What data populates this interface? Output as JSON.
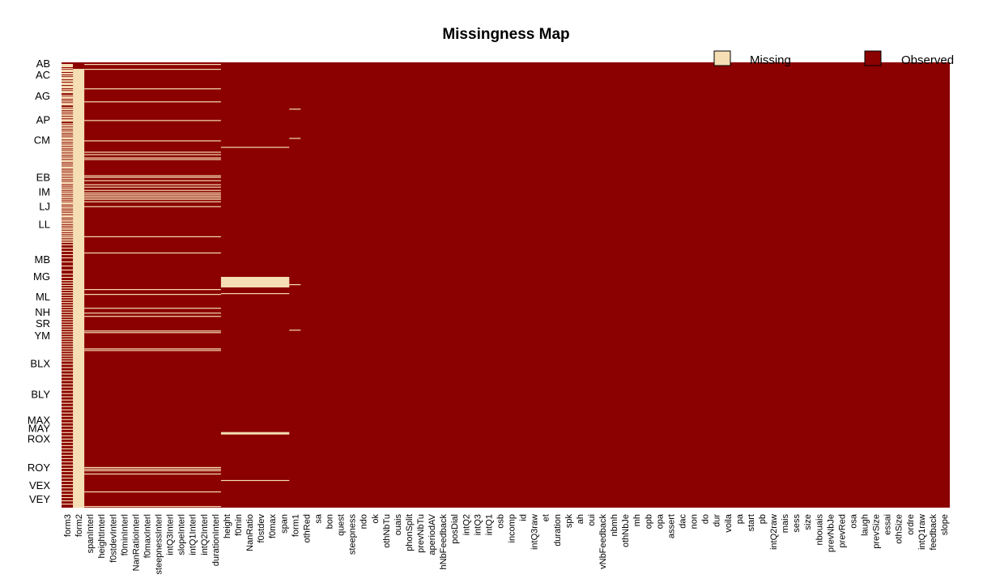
{
  "chart_data": {
    "type": "heatmap",
    "title": "Missingness Map",
    "legend": {
      "placement": "top-right",
      "items": [
        {
          "label": "Missing",
          "color": "#F5DEB3"
        },
        {
          "label": "Observed",
          "color": "#8B0000"
        }
      ]
    },
    "colors": {
      "missing": "#F5DEB3",
      "observed": "#8B0000"
    },
    "y_labels": [
      "AB",
      "AC",
      "AG",
      "AP",
      "CM",
      "EB",
      "IM",
      "LJ",
      "LL",
      "MB",
      "MG",
      "ML",
      "NH",
      "SR",
      "YM",
      "BLX",
      "BLY",
      "MAX",
      "MAY",
      "ROX",
      "ROY",
      "VEX",
      "VEY"
    ],
    "y_label_rows": [
      1,
      15,
      41,
      70,
      95,
      141,
      159,
      177,
      199,
      242,
      263,
      288,
      307,
      321,
      336,
      370,
      408,
      440,
      450,
      463,
      498,
      520,
      537
    ],
    "x_labels": [
      "form3",
      "form2",
      "spanInterl",
      "heightInterl",
      "f0stdevInterl",
      "f0minInterl",
      "NanRatioInterl",
      "f0maxInterl",
      "steepnessInterl",
      "intQ3Interl",
      "slopeInterl",
      "intQ1Interl",
      "intQ2Interl",
      "durationInterl",
      "height",
      "f0min",
      "NanRatio",
      "f0stdev",
      "f0max",
      "span",
      "form1",
      "othRed",
      "sa",
      "bon",
      "quest",
      "steepness",
      "ndo",
      "ok",
      "othNbTu",
      "ouais",
      "phonSplit",
      "prevNbTu",
      "aperiodAV",
      "hNbFeedback",
      "posDial",
      "intQ2",
      "intQ3",
      "intQ1",
      "osb",
      "incomp",
      "id",
      "intQ3raw",
      "et",
      "duration",
      "spk",
      "ah",
      "oui",
      "vNbFeedback",
      "nbmh",
      "othNbJe",
      "mh",
      "opb",
      "opa",
      "assert",
      "dac",
      "non",
      "do",
      "dur",
      "voila",
      "pa",
      "start",
      "pb",
      "intQ2raw",
      "mais",
      "sess",
      "size",
      "nbouais",
      "prevNbJe",
      "prevRed",
      "osa",
      "laugh",
      "prevSize",
      "essai",
      "othSize",
      "ordre",
      "intQ1raw",
      "feedback",
      "slope"
    ],
    "n_rows": 548,
    "missing": [
      {
        "columns": [
          0
        ],
        "rows": [
          2,
          3,
          4,
          5,
          7,
          9,
          10,
          11,
          13,
          14,
          16,
          18,
          19,
          20,
          22,
          23,
          25,
          26,
          27,
          29,
          30,
          31,
          33,
          35,
          36,
          37,
          40,
          42,
          43,
          44,
          46,
          48,
          50,
          51,
          52,
          55,
          57,
          58,
          60,
          62,
          64,
          65,
          67,
          68,
          70,
          71,
          72,
          75,
          77,
          78,
          80,
          81,
          83,
          85,
          86,
          88,
          90,
          92,
          93,
          94,
          96,
          97,
          99,
          101,
          102,
          104,
          105,
          107,
          109,
          110,
          112,
          113,
          115,
          117,
          118,
          120,
          121,
          122,
          124,
          126,
          128,
          129,
          130,
          132,
          134,
          136,
          137,
          139,
          140,
          142,
          143,
          145,
          147,
          148,
          149,
          151,
          153,
          155,
          156,
          158,
          160,
          161,
          163,
          165,
          166,
          168,
          170,
          172,
          173,
          174,
          176,
          178,
          179,
          181,
          183,
          185,
          186,
          188,
          189,
          190,
          192,
          194,
          195,
          197,
          198,
          200,
          202,
          204,
          205,
          207,
          208,
          210,
          212,
          214,
          215,
          217,
          219,
          221,
          224,
          228,
          232,
          236,
          240,
          245,
          250,
          255,
          260,
          264,
          268,
          271,
          274,
          277,
          280,
          283,
          286,
          289,
          292,
          295,
          298,
          301,
          304,
          307,
          310,
          313,
          316,
          319,
          322,
          325,
          328,
          331,
          334,
          337,
          340,
          343,
          346,
          349,
          352,
          355,
          358,
          361,
          364,
          367,
          371,
          375,
          379,
          383,
          387,
          391,
          395,
          399,
          403,
          407,
          411,
          415,
          419,
          423,
          427,
          431,
          435,
          439,
          443,
          447,
          451,
          455,
          459,
          463,
          467,
          471,
          475,
          479,
          483,
          487,
          491,
          495,
          499,
          503,
          507,
          511,
          515,
          519,
          523,
          527,
          531,
          535,
          539,
          543
        ]
      },
      {
        "columns": [
          1
        ],
        "rows": [
          8,
          9,
          10,
          11,
          12,
          13,
          14,
          15,
          16,
          17,
          18,
          19,
          20,
          21,
          22,
          23,
          24,
          25,
          26,
          27,
          28,
          29,
          30,
          31,
          32,
          33,
          34,
          35,
          36,
          37,
          38,
          39,
          40,
          41,
          42,
          43,
          44,
          45,
          46,
          47,
          48,
          49,
          50,
          51,
          52,
          53,
          54,
          55,
          56,
          57,
          58,
          59,
          60,
          61,
          62,
          63,
          64,
          65,
          66,
          67,
          68,
          69,
          70,
          71,
          72,
          73,
          74,
          75,
          76,
          77,
          78,
          79,
          80,
          81,
          82,
          83,
          84,
          85,
          86,
          87,
          88,
          89,
          90,
          91,
          92,
          93,
          94,
          95,
          96,
          97,
          98,
          99,
          100,
          101,
          102,
          103,
          104,
          105,
          106,
          107,
          108,
          109,
          110,
          111,
          112,
          113,
          114,
          115,
          116,
          117,
          118,
          119,
          120,
          121,
          122,
          123,
          124,
          125,
          126,
          127,
          128,
          129,
          130,
          131,
          132,
          133,
          134,
          135,
          136,
          137,
          138,
          139,
          140,
          141,
          142,
          143,
          144,
          145,
          146,
          147,
          148,
          149,
          150,
          151,
          152,
          153,
          154,
          155,
          156,
          157,
          158,
          159,
          160,
          161,
          162,
          163,
          164,
          165,
          166,
          167,
          168,
          169,
          170,
          171,
          172,
          173,
          174,
          175,
          176,
          177,
          178,
          179,
          180,
          181,
          182,
          183,
          184,
          185,
          186,
          187,
          188,
          189,
          190,
          191,
          192,
          193,
          194,
          195,
          196,
          197,
          198,
          199,
          200,
          201,
          202,
          203,
          204,
          205,
          206,
          207,
          208,
          209,
          210,
          211,
          212,
          213,
          214,
          215,
          216,
          217,
          218,
          219,
          220,
          221,
          222,
          223,
          224,
          225,
          226,
          227,
          228,
          229,
          230,
          231,
          232,
          233,
          234,
          235,
          236,
          237,
          238,
          239,
          240,
          241,
          242,
          243,
          244,
          245,
          246,
          247,
          248,
          249,
          250,
          251,
          252,
          253,
          254,
          255,
          256,
          257,
          258,
          259,
          260,
          261,
          262,
          263,
          264,
          265,
          266,
          267,
          268,
          269,
          270,
          271,
          272,
          273,
          274,
          275,
          276,
          277,
          278,
          279,
          280,
          281,
          282,
          283,
          284,
          285,
          286,
          287,
          288,
          289,
          290,
          291,
          292,
          293,
          294,
          295,
          296,
          297,
          298,
          299,
          300,
          301,
          302,
          303,
          304,
          305,
          306,
          307,
          308,
          309,
          310,
          311,
          312,
          313,
          314,
          315,
          316,
          317,
          318,
          319,
          320,
          321,
          322,
          323,
          324,
          325,
          326,
          327,
          328,
          329,
          330,
          331,
          332,
          333,
          334,
          335,
          336,
          337,
          338,
          339,
          340,
          341,
          342,
          343,
          344,
          345,
          346,
          347,
          348,
          349,
          350,
          351,
          352,
          353,
          354,
          355,
          356,
          357,
          358,
          359,
          360,
          361,
          362,
          363,
          364,
          365,
          366,
          367,
          368,
          369,
          370,
          371,
          372,
          373,
          374,
          375,
          376,
          377,
          378,
          379,
          380,
          381,
          382,
          383,
          384,
          385,
          386,
          387,
          388,
          389,
          390,
          391,
          392,
          393,
          394,
          395,
          396,
          397,
          398,
          399,
          400,
          401,
          402,
          403,
          404,
          405,
          406,
          407,
          408,
          409,
          410,
          411,
          412,
          413,
          414,
          415,
          416,
          417,
          418,
          419,
          420,
          421,
          422,
          423,
          424,
          425,
          426,
          427,
          428,
          429,
          430,
          431,
          432,
          433,
          434,
          435,
          436,
          437,
          438,
          439,
          440,
          441,
          442,
          443,
          444,
          445,
          446,
          447,
          448,
          449,
          450,
          451,
          452,
          453,
          454,
          455,
          456,
          457,
          458,
          459,
          460,
          461,
          462,
          463,
          464,
          465,
          466,
          467,
          468,
          469,
          470,
          471,
          472,
          473,
          474,
          475,
          476,
          477,
          478,
          479,
          480,
          481,
          482,
          483,
          484,
          485,
          486,
          487,
          488,
          489,
          490,
          491,
          492,
          493,
          494,
          495,
          496,
          497,
          498,
          499,
          500,
          501,
          502,
          503,
          504,
          505,
          506,
          507,
          508,
          509,
          510,
          511,
          512,
          513,
          514,
          515,
          516,
          517,
          518,
          519,
          520,
          521,
          522,
          523,
          524,
          525,
          526,
          527,
          528,
          529,
          530,
          531,
          532,
          533,
          534,
          535,
          536,
          537,
          538,
          539,
          540,
          541,
          542,
          543,
          544,
          545,
          546,
          547
        ]
      },
      {
        "columns": [
          2,
          3,
          4,
          5,
          6,
          7,
          8,
          9,
          10,
          11,
          12,
          13
        ],
        "rows": [
          2,
          8,
          32,
          48,
          71,
          96,
          110,
          113,
          117,
          119,
          139,
          141,
          145,
          150,
          153,
          157,
          160,
          162,
          164,
          166,
          168,
          171,
          177,
          214,
          234,
          279,
          285,
          302,
          308,
          312,
          330,
          332,
          352,
          354,
          498,
          500,
          502,
          506,
          528,
          546
        ]
      },
      {
        "columns": [
          14,
          15,
          16,
          17,
          18,
          19
        ],
        "rows": [
          104,
          264,
          265,
          266,
          267,
          268,
          269,
          270,
          271,
          272,
          273,
          274,
          275,
          276,
          284,
          455,
          456,
          457,
          514
        ]
      },
      {
        "columns": [
          20
        ],
        "rows": [
          57,
          93,
          273,
          329
        ]
      }
    ]
  }
}
